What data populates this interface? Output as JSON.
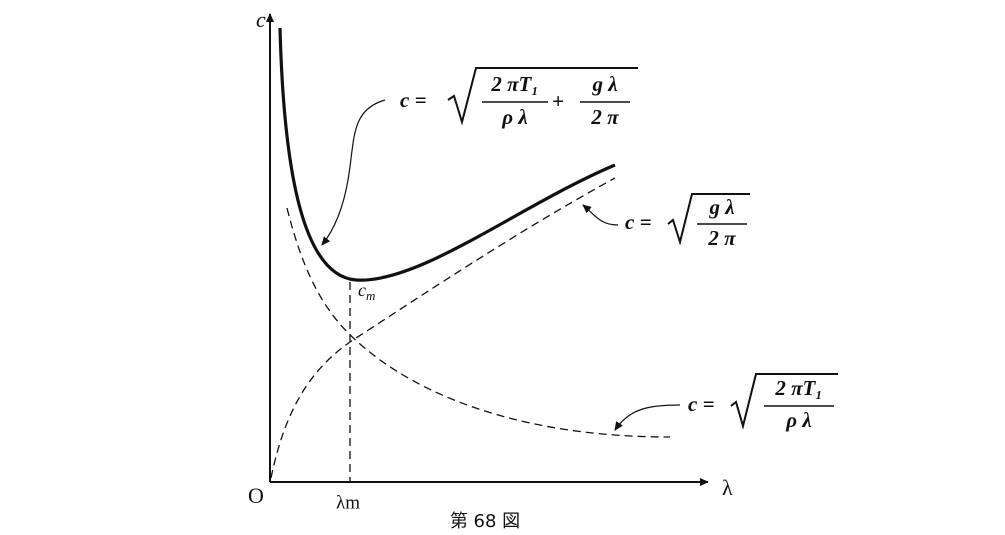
{
  "axes": {
    "y_label": "c",
    "x_label": "λ",
    "origin": "O",
    "x_mark": "λm",
    "min_label": {
      "main": "c",
      "sub": "m"
    }
  },
  "equations": [
    {
      "lhs": "c =",
      "fractions": [
        {
          "num": "2 πT₁",
          "den": "ρ λ"
        },
        {
          "num": "g λ",
          "den": "2 π"
        }
      ],
      "operator": "+"
    },
    {
      "lhs": "c =",
      "fractions": [
        {
          "num": "g λ",
          "den": "2 π"
        }
      ]
    },
    {
      "lhs": "c =",
      "fractions": [
        {
          "num": "2 πT₁",
          "den": "ρ λ"
        }
      ]
    }
  ],
  "caption": "第 68 図"
}
